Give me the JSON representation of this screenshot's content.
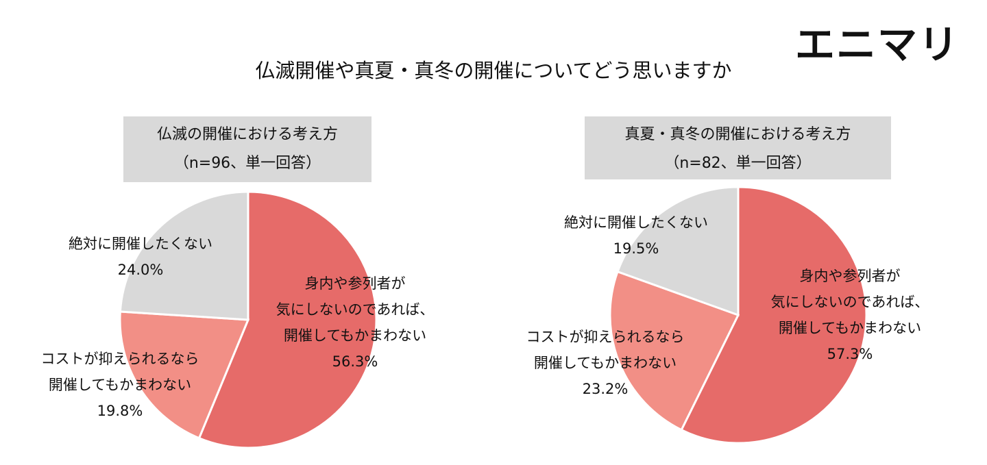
{
  "title": "仏滅開催や真夏・真冬の開催についてどう思いますか",
  "logo": "エニマリ",
  "chart_data": [
    {
      "type": "pie",
      "title": "仏滅の開催における考え方",
      "subtitle": "（n=96、単一回答）",
      "categories": [
        "身内や参列者が\n気にしないのであれば、\n開催してもかまわない",
        "コストが抑えられるなら\n開催してもかまわない",
        "絶対に開催したくない"
      ],
      "values": [
        56.3,
        19.8,
        24.0
      ],
      "value_labels": [
        "56.3%",
        "19.8%",
        "24.0%"
      ],
      "colors": [
        "#e66b69",
        "#f28f86",
        "#d9d9d9"
      ]
    },
    {
      "type": "pie",
      "title": "真夏・真冬の開催における考え方",
      "subtitle": "（n=82、単一回答）",
      "categories": [
        "身内や参列者が\n気にしないのであれば、\n開催してもかまわない",
        "コストが抑えられるなら\n開催してもかまわない",
        "絶対に開催したくない"
      ],
      "values": [
        57.3,
        23.2,
        19.5
      ],
      "value_labels": [
        "57.3%",
        "23.2%",
        "19.5%"
      ],
      "colors": [
        "#e66b69",
        "#f28f86",
        "#d9d9d9"
      ]
    }
  ]
}
